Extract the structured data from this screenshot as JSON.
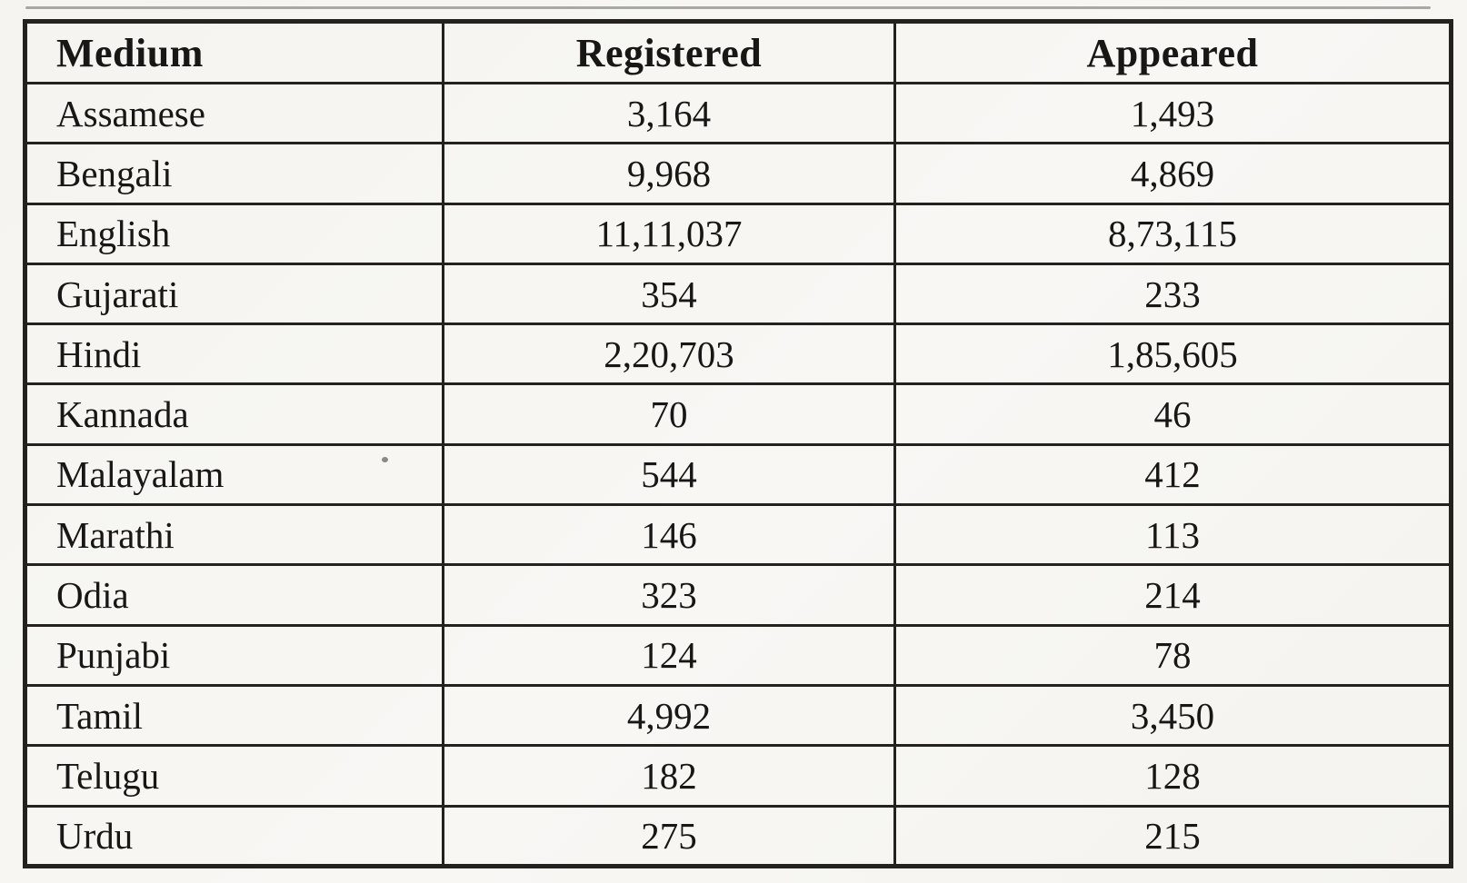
{
  "table": {
    "columns": [
      "Medium",
      "Registered",
      "Appeared"
    ],
    "rows": [
      {
        "medium": "Assamese",
        "registered": "3,164",
        "appeared": "1,493"
      },
      {
        "medium": "Bengali",
        "registered": "9,968",
        "appeared": "4,869"
      },
      {
        "medium": "English",
        "registered": "11,11,037",
        "appeared": "8,73,115"
      },
      {
        "medium": "Gujarati",
        "registered": "354",
        "appeared": "233"
      },
      {
        "medium": "Hindi",
        "registered": "2,20,703",
        "appeared": "1,85,605"
      },
      {
        "medium": "Kannada",
        "registered": "70",
        "appeared": "46"
      },
      {
        "medium": "Malayalam",
        "registered": "544",
        "appeared": "412"
      },
      {
        "medium": "Marathi",
        "registered": "146",
        "appeared": "113"
      },
      {
        "medium": "Odia",
        "registered": "323",
        "appeared": "214"
      },
      {
        "medium": "Punjabi",
        "registered": "124",
        "appeared": "78"
      },
      {
        "medium": "Tamil",
        "registered": "4,992",
        "appeared": "3,450"
      },
      {
        "medium": "Telugu",
        "registered": "182",
        "appeared": "128"
      },
      {
        "medium": "Urdu",
        "registered": "275",
        "appeared": "215"
      }
    ],
    "colors": {
      "paper_background": "#f6f5f1",
      "border": "#23221f",
      "text": "#181715"
    }
  }
}
